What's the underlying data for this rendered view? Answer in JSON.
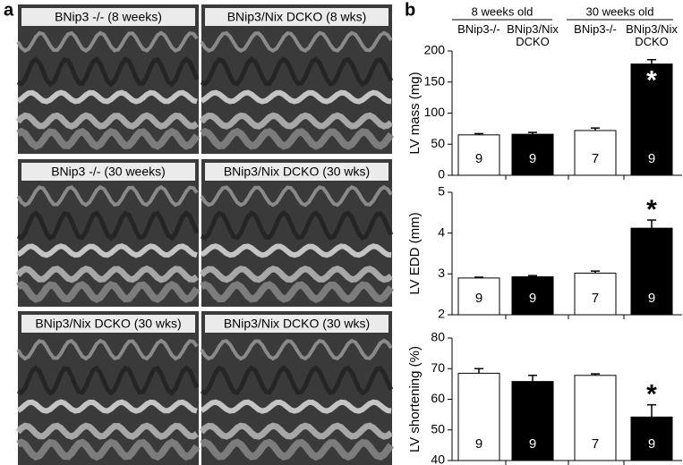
{
  "panel_a": {
    "label": "a",
    "images": [
      {
        "caption": "BNip3 -/- (8 weeks)"
      },
      {
        "caption": "BNip3/Nix DCKO (8 wks)"
      },
      {
        "caption": "BNip3 -/- (30 weeks)"
      },
      {
        "caption": "BNip3/Nix DCKO (30 wks)"
      },
      {
        "caption": "BNip3/Nix DCKO (30 wks)"
      },
      {
        "caption": "BNip3/Nix DCKO (30 wks)"
      }
    ]
  },
  "panel_b": {
    "label": "b",
    "groups": [
      "8 weeks old",
      "30 weeks old"
    ]
  },
  "chart_data": [
    {
      "type": "bar",
      "ylabel": "LV mass (mg)",
      "categories": [
        "BNip3-/-",
        "BNip3/Nix DCKO",
        "BNip3-/-",
        "BNip3/Nix DCKO"
      ],
      "values": [
        65,
        66,
        72,
        179
      ],
      "errors": [
        2,
        3,
        4,
        7
      ],
      "n_labels": [
        9,
        9,
        7,
        9
      ],
      "significance": [
        null,
        null,
        null,
        "*"
      ],
      "colors": [
        "#ffffff",
        "#000000",
        "#ffffff",
        "#000000"
      ],
      "ylim": [
        0,
        200
      ],
      "yticks": [
        0,
        50,
        100,
        150,
        200
      ]
    },
    {
      "type": "bar",
      "ylabel": "LV EDD (mm)",
      "values": [
        2.9,
        2.93,
        3.02,
        4.12
      ],
      "errors": [
        0.02,
        0.03,
        0.05,
        0.2
      ],
      "n_labels": [
        9,
        9,
        7,
        9
      ],
      "significance": [
        null,
        null,
        null,
        "*"
      ],
      "colors": [
        "#ffffff",
        "#000000",
        "#ffffff",
        "#000000"
      ],
      "ylim": [
        2,
        5
      ],
      "yticks": [
        2,
        3,
        4,
        5
      ]
    },
    {
      "type": "bar",
      "ylabel": "LV shortening (%)",
      "values": [
        68.5,
        65.8,
        67.8,
        54.2
      ],
      "errors": [
        1.5,
        2,
        0.5,
        4
      ],
      "n_labels": [
        9,
        9,
        7,
        9
      ],
      "significance": [
        null,
        null,
        null,
        "*"
      ],
      "colors": [
        "#ffffff",
        "#000000",
        "#ffffff",
        "#000000"
      ],
      "ylim": [
        40,
        80
      ],
      "yticks": [
        40,
        50,
        60,
        70,
        80
      ]
    }
  ]
}
